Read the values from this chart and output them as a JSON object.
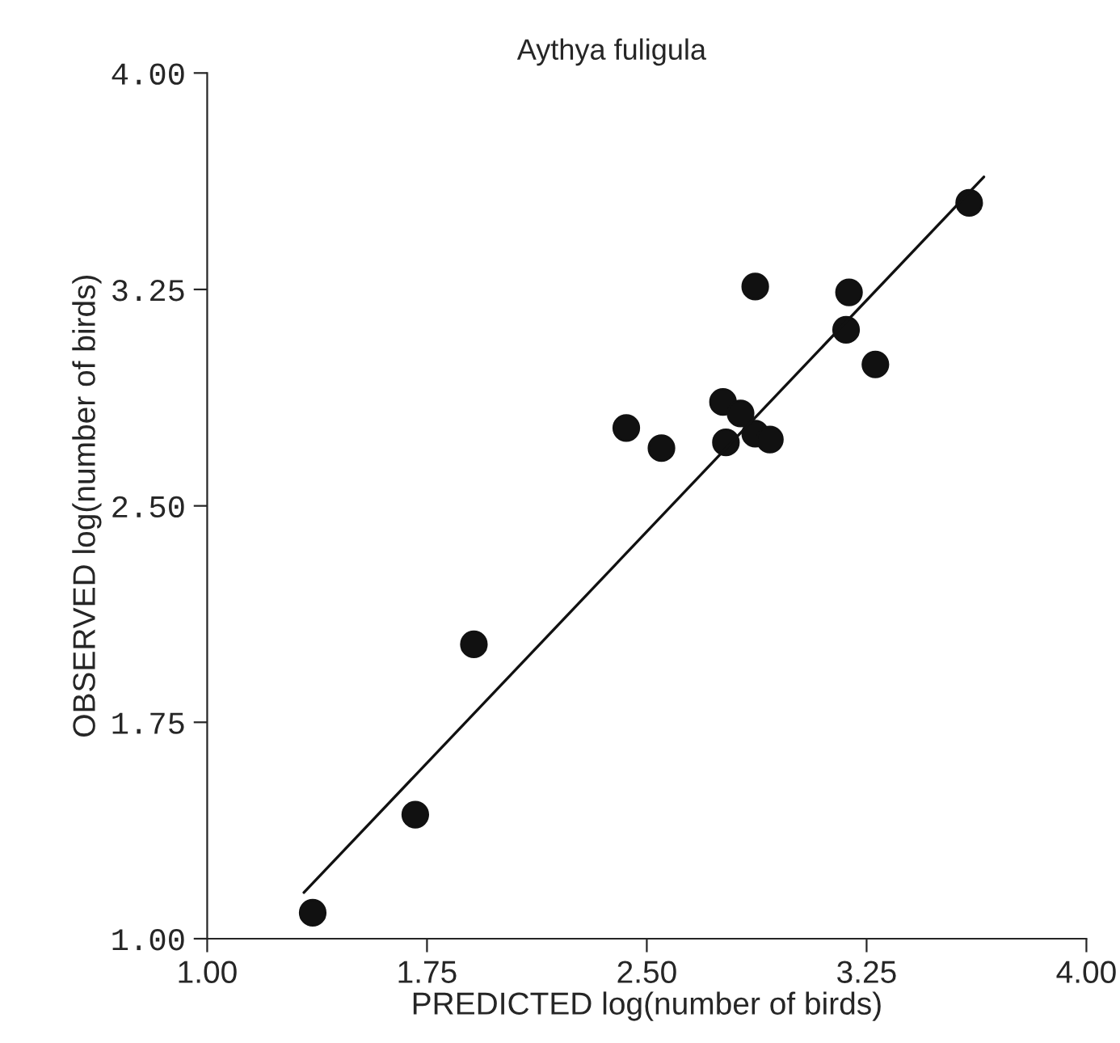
{
  "chart_data": {
    "type": "scatter",
    "title": "Aythya fuligula",
    "xlabel": "PREDICTED log(number of birds)",
    "ylabel": "OBSERVED log(number of birds)",
    "xlim": [
      1.0,
      4.0
    ],
    "ylim": [
      1.0,
      4.0
    ],
    "xticks": [
      {
        "value": 1.0,
        "label": "1.00"
      },
      {
        "value": 1.75,
        "label": "1.75"
      },
      {
        "value": 2.5,
        "label": "2.50"
      },
      {
        "value": 3.25,
        "label": "3.25"
      },
      {
        "value": 4.0,
        "label": "4.00"
      }
    ],
    "yticks": [
      {
        "value": 1.0,
        "label": "1.00"
      },
      {
        "value": 1.75,
        "label": "1.75"
      },
      {
        "value": 2.5,
        "label": "2.50"
      },
      {
        "value": 3.25,
        "label": "3.25"
      },
      {
        "value": 4.0,
        "label": "4.00"
      }
    ],
    "grid": false,
    "series": [
      {
        "marker": "circle",
        "color": "#111111",
        "x": [
          1.36,
          1.71,
          1.91,
          2.43,
          2.55,
          2.76,
          2.77,
          2.82,
          2.87,
          2.92,
          2.87,
          3.19,
          3.18,
          3.28,
          3.6
        ],
        "values": [
          1.09,
          1.43,
          2.02,
          2.77,
          2.7,
          2.86,
          2.72,
          2.82,
          2.75,
          2.73,
          3.26,
          3.24,
          3.11,
          2.99,
          3.55
        ]
      },
      {
        "type": "line",
        "color": "#111111",
        "line_style": "solid",
        "x": [
          1.33,
          3.65
        ],
        "values": [
          1.16,
          3.64
        ]
      }
    ]
  }
}
